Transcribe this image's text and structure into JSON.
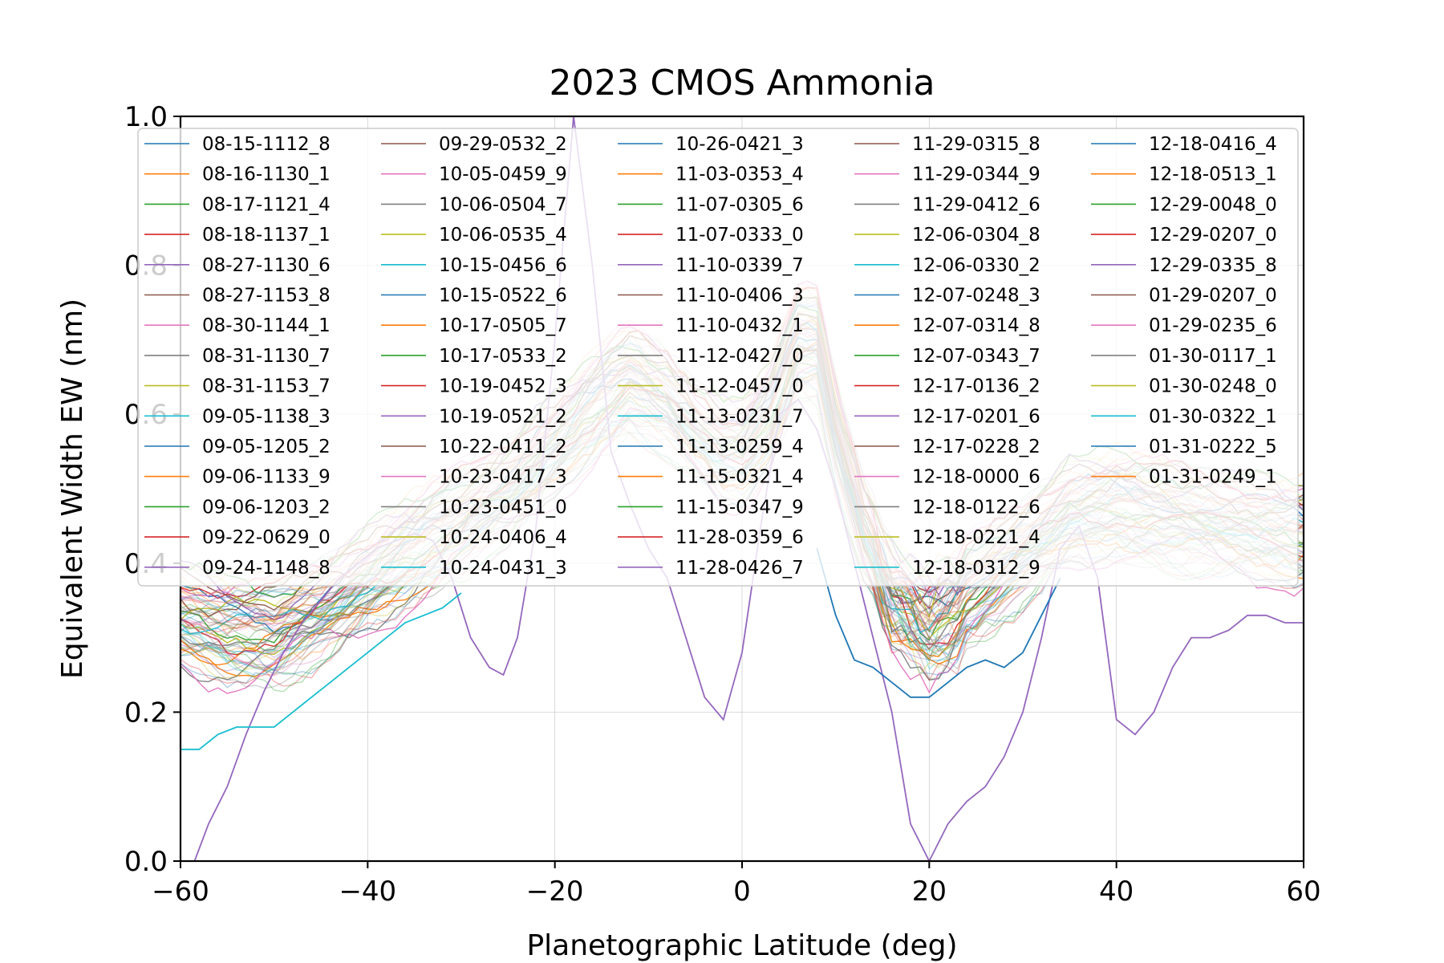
{
  "chart_data": {
    "type": "line",
    "title": "2023 CMOS Ammonia",
    "xlabel": "Planetographic Latitude (deg)",
    "ylabel": "Equivalent Width EW (nm)",
    "xlim": [
      -60,
      60
    ],
    "ylim": [
      0.0,
      1.0
    ],
    "xticks": [
      -60,
      -40,
      -20,
      0,
      20,
      40,
      60
    ],
    "xtick_labels": [
      "−60",
      "−40",
      "−20",
      "0",
      "20",
      "40",
      "60"
    ],
    "yticks": [
      0.0,
      0.2,
      0.4,
      0.6,
      0.8,
      1.0
    ],
    "ytick_labels": [
      "0.0",
      "0.2",
      "0.4",
      "0.6",
      "0.8",
      "1.0"
    ],
    "grid": true,
    "legend_placement": "top, 5 columns",
    "palette": [
      "#1f77b4",
      "#ff7f0e",
      "#2ca02c",
      "#d62728",
      "#9467bd",
      "#8c564b",
      "#e377c2",
      "#7f7f7f",
      "#bcbd22",
      "#17becf"
    ],
    "series_names": [
      "08-15-1112_8",
      "08-16-1130_1",
      "08-17-1121_4",
      "08-18-1137_1",
      "08-27-1130_6",
      "08-27-1153_8",
      "08-30-1144_1",
      "08-31-1130_7",
      "08-31-1153_7",
      "09-05-1138_3",
      "09-05-1205_2",
      "09-06-1133_9",
      "09-06-1203_2",
      "09-22-0629_0",
      "09-24-1148_8",
      "09-29-0532_2",
      "10-05-0459_9",
      "10-06-0504_7",
      "10-06-0535_4",
      "10-15-0456_6",
      "10-15-0522_6",
      "10-17-0505_7",
      "10-17-0533_2",
      "10-19-0452_3",
      "10-19-0521_2",
      "10-22-0411_2",
      "10-23-0417_3",
      "10-23-0451_0",
      "10-24-0406_4",
      "10-24-0431_3",
      "10-26-0421_3",
      "11-03-0353_4",
      "11-07-0305_6",
      "11-07-0333_0",
      "11-10-0339_7",
      "11-10-0406_3",
      "11-10-0432_1",
      "11-12-0427_0",
      "11-12-0457_0",
      "11-13-0231_7",
      "11-13-0259_4",
      "11-15-0321_4",
      "11-15-0347_9",
      "11-28-0359_6",
      "11-28-0426_7",
      "11-29-0315_8",
      "11-29-0344_9",
      "11-29-0412_6",
      "12-06-0304_8",
      "12-06-0330_2",
      "12-07-0248_3",
      "12-07-0314_8",
      "12-07-0343_7",
      "12-17-0136_2",
      "12-17-0201_6",
      "12-17-0228_2",
      "12-18-0000_6",
      "12-18-0122_6",
      "12-18-0221_4",
      "12-18-0312_9",
      "12-18-0416_4",
      "12-18-0513_1",
      "12-29-0048_0",
      "12-29-0207_0",
      "12-29-0335_8",
      "01-29-0207_0",
      "01-29-0235_6",
      "01-30-0117_1",
      "01-30-0248_0",
      "01-30-0322_1",
      "01-31-0222_5",
      "01-31-0249_1"
    ],
    "typical_profile": {
      "x": [
        -60,
        -55,
        -50,
        -45,
        -40,
        -35,
        -30,
        -25,
        -20,
        -15,
        -12,
        -8,
        -5,
        -2,
        0,
        3,
        6,
        8,
        10,
        13,
        16,
        20,
        25,
        30,
        35,
        40,
        45,
        50,
        55,
        60
      ],
      "y": [
        0.33,
        0.31,
        0.31,
        0.34,
        0.38,
        0.42,
        0.46,
        0.5,
        0.56,
        0.62,
        0.65,
        0.62,
        0.58,
        0.55,
        0.55,
        0.6,
        0.7,
        0.7,
        0.58,
        0.45,
        0.37,
        0.33,
        0.37,
        0.42,
        0.47,
        0.48,
        0.47,
        0.46,
        0.45,
        0.44
      ]
    },
    "highlight_series": [
      {
        "name": "08-27-1130_6",
        "x": [
          -58.5,
          -57,
          -55,
          -53,
          -51,
          -49,
          -47,
          -45,
          -43,
          -41,
          -39,
          -37,
          -35,
          -33,
          -31,
          -29,
          -27,
          -25.5,
          -24,
          -22,
          -20,
          -18,
          -16,
          -14,
          -12,
          -10,
          -8,
          -6,
          -4,
          -2,
          0,
          2,
          4,
          6,
          8,
          10,
          12,
          14,
          16,
          18,
          20,
          22,
          24,
          26,
          28,
          30,
          32,
          34,
          36,
          38,
          40,
          42,
          44,
          46,
          48,
          50,
          52,
          54,
          56,
          58,
          60
        ],
        "y": [
          0.0,
          0.05,
          0.1,
          0.17,
          0.23,
          0.28,
          0.32,
          0.35,
          0.38,
          0.4,
          0.42,
          0.43,
          0.44,
          0.43,
          0.38,
          0.3,
          0.26,
          0.25,
          0.3,
          0.45,
          0.7,
          1.0,
          0.8,
          0.55,
          0.48,
          0.42,
          0.38,
          0.3,
          0.22,
          0.19,
          0.28,
          0.45,
          0.6,
          0.62,
          0.58,
          0.5,
          0.4,
          0.3,
          0.2,
          0.05,
          0.0,
          0.05,
          0.08,
          0.1,
          0.14,
          0.2,
          0.3,
          0.42,
          0.45,
          0.38,
          0.19,
          0.17,
          0.2,
          0.26,
          0.3,
          0.3,
          0.31,
          0.33,
          0.33,
          0.32,
          0.32
        ]
      },
      {
        "name": "09-05-1205_2",
        "x": [
          8,
          10,
          12,
          14,
          16,
          18,
          20,
          22,
          24,
          26,
          28,
          30,
          32,
          34
        ],
        "y": [
          0.42,
          0.33,
          0.27,
          0.26,
          0.24,
          0.22,
          0.22,
          0.24,
          0.26,
          0.27,
          0.26,
          0.28,
          0.33,
          0.38
        ]
      },
      {
        "name": "09-05-1138_3",
        "x": [
          -60,
          -58,
          -56,
          -54,
          -52,
          -50,
          -48,
          -46,
          -44,
          -42,
          -40,
          -38,
          -36,
          -34,
          -32,
          -30
        ],
        "y": [
          0.15,
          0.15,
          0.17,
          0.18,
          0.18,
          0.18,
          0.2,
          0.22,
          0.24,
          0.26,
          0.28,
          0.3,
          0.32,
          0.33,
          0.34,
          0.36
        ]
      }
    ]
  }
}
